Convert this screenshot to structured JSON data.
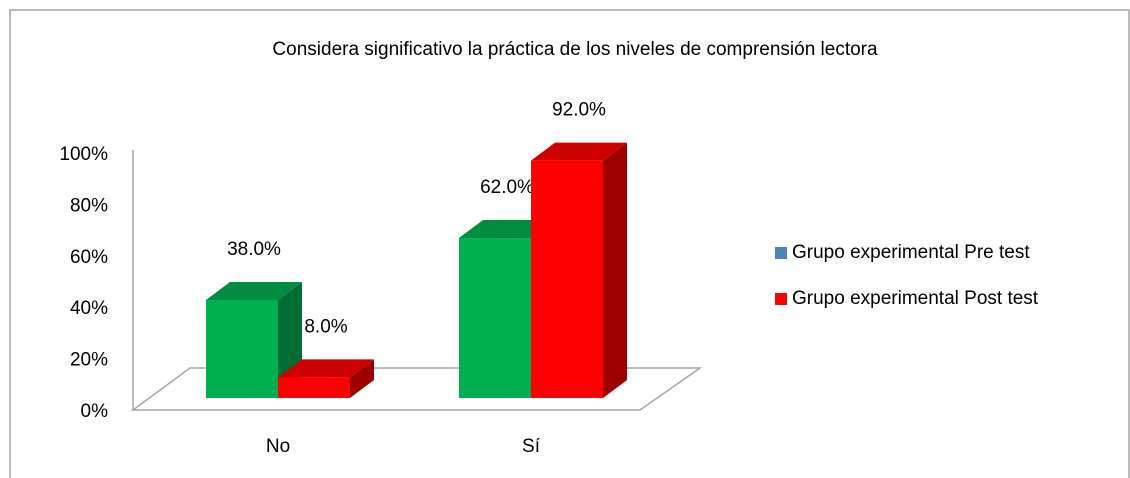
{
  "chart_data": {
    "type": "bar3d",
    "title": "Considera significativo la práctica de los niveles de comprensión lectora",
    "categories": [
      "No",
      "Sí"
    ],
    "series": [
      {
        "name": "Grupo experimental Pre test",
        "color": "#00b050",
        "legend_color": "#4f81bd",
        "values": [
          38,
          62
        ],
        "value_labels": [
          "38.0%",
          "62.0%"
        ]
      },
      {
        "name": "Grupo experimental Post test",
        "color": "#ff0000",
        "legend_color": "#ff0000",
        "values": [
          8,
          92
        ],
        "value_labels": [
          "8.0%",
          "92.0%"
        ]
      }
    ],
    "ylim": [
      0,
      100
    ],
    "yticks": [
      {
        "value": 0,
        "label": "0%"
      },
      {
        "value": 20,
        "label": "20%"
      },
      {
        "value": 40,
        "label": "40%"
      },
      {
        "value": 60,
        "label": "60%"
      },
      {
        "value": 80,
        "label": "80%"
      },
      {
        "value": 100,
        "label": "100%"
      }
    ],
    "legend": "right"
  }
}
